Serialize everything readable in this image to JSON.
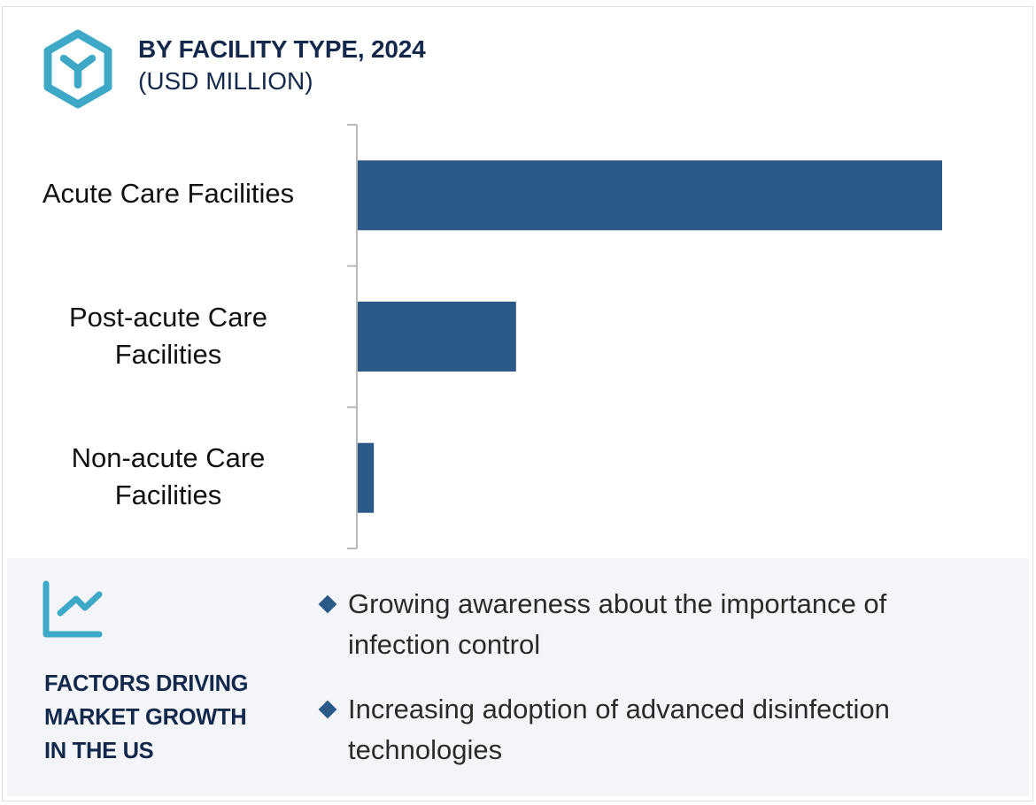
{
  "header": {
    "icon": "hexagon-y-icon",
    "title": "BY FACILITY TYPE, 2024",
    "subtitle": "(USD MILLION)"
  },
  "chart_data": {
    "type": "bar",
    "orientation": "horizontal",
    "title": "BY FACILITY TYPE, 2024",
    "subtitle": "(USD MILLION)",
    "xlabel": "",
    "ylabel": "",
    "categories": [
      "Acute Care Facilities",
      "Post-acute Care Facilities",
      "Non-acute Care Facilities"
    ],
    "category_lines": [
      [
        "Acute Care Facilities"
      ],
      [
        "Post-acute Care",
        "Facilities"
      ],
      [
        "Non-acute Care",
        "Facilities"
      ]
    ],
    "values": [
      1.0,
      0.272,
      0.029
    ],
    "value_note": "relative to largest bar; no numeric axis or data labels shown",
    "xlim": [
      0,
      1.0
    ],
    "grid": false,
    "legend": "none",
    "bar_color": "#2c5a88",
    "axis_color": "#b9b9b9"
  },
  "factors": {
    "icon": "trend-chart-icon",
    "title_lines": [
      "FACTORS DRIVING",
      "MARKET GROWTH",
      "IN THE US"
    ],
    "bullets": [
      {
        "lines": [
          "Growing awareness about the importance of",
          "infection control"
        ]
      },
      {
        "lines": [
          "Increasing adoption of advanced disinfection",
          "technologies"
        ]
      }
    ]
  },
  "colors": {
    "accent": "#3ea8c7",
    "heading": "#14284b",
    "bar": "#2c5a88",
    "panel_bg": "#f3f5f9"
  }
}
